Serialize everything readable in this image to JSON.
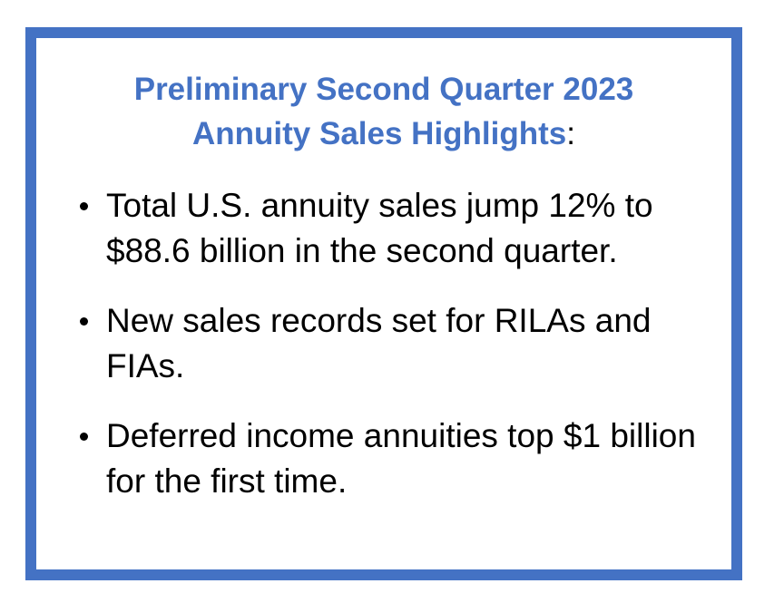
{
  "title": {
    "line1": "Preliminary Second Quarter 2023",
    "line2": "Annuity Sales Highlights",
    "suffix": ":"
  },
  "bullets": [
    "Total U.S. annuity sales jump 12% to $88.6 billion in the second quarter.",
    "New sales records set for RILAs and FIAs.",
    "Deferred income annuities top $1 billion for the first time."
  ],
  "colors": {
    "accent": "#4472C4",
    "text": "#000000"
  }
}
